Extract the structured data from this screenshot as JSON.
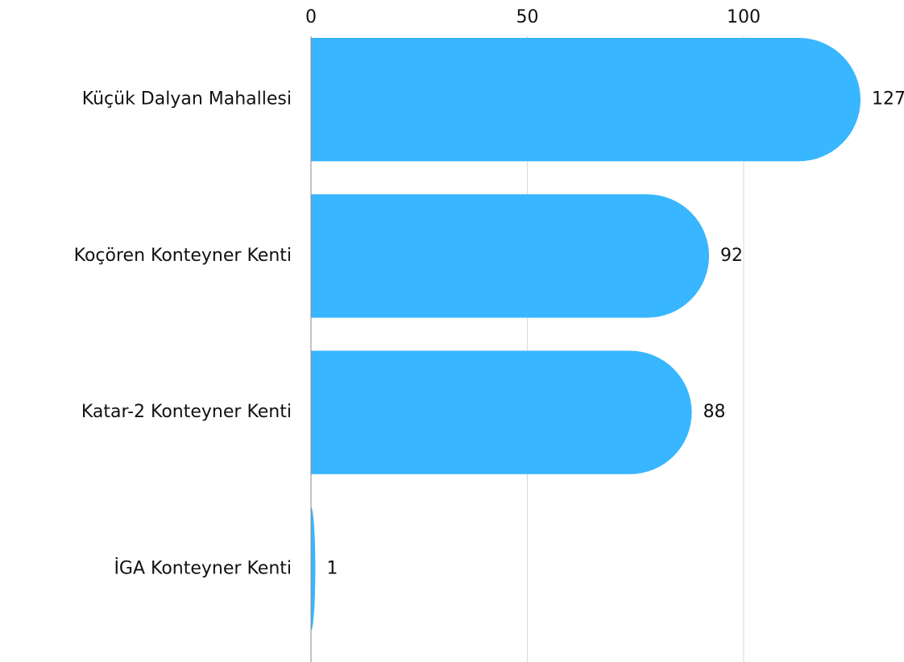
{
  "chart_data": {
    "type": "hbar",
    "categories": [
      "Küçük Dalyan Mahallesi",
      "Koçören Konteyner Kenti",
      "Katar-2 Konteyner Kenti",
      "İGA Konteyner Kenti"
    ],
    "values": [
      127,
      92,
      88,
      1
    ],
    "color": "#38b6ff",
    "xlim": [
      0,
      127
    ],
    "xticks": [
      0,
      50,
      100
    ],
    "grid": true
  }
}
